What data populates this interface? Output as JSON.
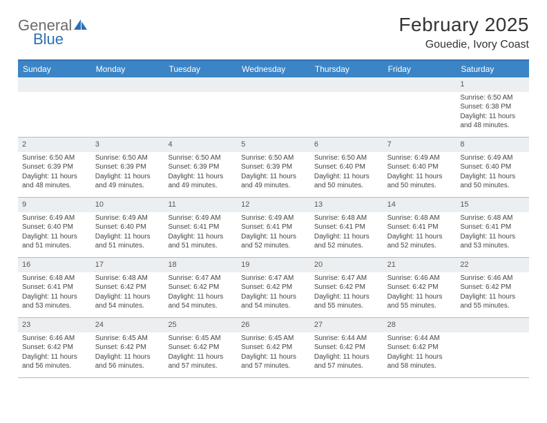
{
  "logo": {
    "word1": "General",
    "word2": "Blue"
  },
  "title": "February 2025",
  "location": "Gouedie, Ivory Coast",
  "colors": {
    "header_bg": "#3b85c6",
    "header_border_top": "#2e6fb4",
    "row_border": "#a9bcd0",
    "daynum_bg": "#eceff1",
    "text": "#333333"
  },
  "day_labels": [
    "Sunday",
    "Monday",
    "Tuesday",
    "Wednesday",
    "Thursday",
    "Friday",
    "Saturday"
  ],
  "weeks": [
    [
      {
        "n": "",
        "sr": "",
        "ss": "",
        "dl": ""
      },
      {
        "n": "",
        "sr": "",
        "ss": "",
        "dl": ""
      },
      {
        "n": "",
        "sr": "",
        "ss": "",
        "dl": ""
      },
      {
        "n": "",
        "sr": "",
        "ss": "",
        "dl": ""
      },
      {
        "n": "",
        "sr": "",
        "ss": "",
        "dl": ""
      },
      {
        "n": "",
        "sr": "",
        "ss": "",
        "dl": ""
      },
      {
        "n": "1",
        "sr": "Sunrise: 6:50 AM",
        "ss": "Sunset: 6:38 PM",
        "dl": "Daylight: 11 hours and 48 minutes."
      }
    ],
    [
      {
        "n": "2",
        "sr": "Sunrise: 6:50 AM",
        "ss": "Sunset: 6:39 PM",
        "dl": "Daylight: 11 hours and 48 minutes."
      },
      {
        "n": "3",
        "sr": "Sunrise: 6:50 AM",
        "ss": "Sunset: 6:39 PM",
        "dl": "Daylight: 11 hours and 49 minutes."
      },
      {
        "n": "4",
        "sr": "Sunrise: 6:50 AM",
        "ss": "Sunset: 6:39 PM",
        "dl": "Daylight: 11 hours and 49 minutes."
      },
      {
        "n": "5",
        "sr": "Sunrise: 6:50 AM",
        "ss": "Sunset: 6:39 PM",
        "dl": "Daylight: 11 hours and 49 minutes."
      },
      {
        "n": "6",
        "sr": "Sunrise: 6:50 AM",
        "ss": "Sunset: 6:40 PM",
        "dl": "Daylight: 11 hours and 50 minutes."
      },
      {
        "n": "7",
        "sr": "Sunrise: 6:49 AM",
        "ss": "Sunset: 6:40 PM",
        "dl": "Daylight: 11 hours and 50 minutes."
      },
      {
        "n": "8",
        "sr": "Sunrise: 6:49 AM",
        "ss": "Sunset: 6:40 PM",
        "dl": "Daylight: 11 hours and 50 minutes."
      }
    ],
    [
      {
        "n": "9",
        "sr": "Sunrise: 6:49 AM",
        "ss": "Sunset: 6:40 PM",
        "dl": "Daylight: 11 hours and 51 minutes."
      },
      {
        "n": "10",
        "sr": "Sunrise: 6:49 AM",
        "ss": "Sunset: 6:40 PM",
        "dl": "Daylight: 11 hours and 51 minutes."
      },
      {
        "n": "11",
        "sr": "Sunrise: 6:49 AM",
        "ss": "Sunset: 6:41 PM",
        "dl": "Daylight: 11 hours and 51 minutes."
      },
      {
        "n": "12",
        "sr": "Sunrise: 6:49 AM",
        "ss": "Sunset: 6:41 PM",
        "dl": "Daylight: 11 hours and 52 minutes."
      },
      {
        "n": "13",
        "sr": "Sunrise: 6:48 AM",
        "ss": "Sunset: 6:41 PM",
        "dl": "Daylight: 11 hours and 52 minutes."
      },
      {
        "n": "14",
        "sr": "Sunrise: 6:48 AM",
        "ss": "Sunset: 6:41 PM",
        "dl": "Daylight: 11 hours and 52 minutes."
      },
      {
        "n": "15",
        "sr": "Sunrise: 6:48 AM",
        "ss": "Sunset: 6:41 PM",
        "dl": "Daylight: 11 hours and 53 minutes."
      }
    ],
    [
      {
        "n": "16",
        "sr": "Sunrise: 6:48 AM",
        "ss": "Sunset: 6:41 PM",
        "dl": "Daylight: 11 hours and 53 minutes."
      },
      {
        "n": "17",
        "sr": "Sunrise: 6:48 AM",
        "ss": "Sunset: 6:42 PM",
        "dl": "Daylight: 11 hours and 54 minutes."
      },
      {
        "n": "18",
        "sr": "Sunrise: 6:47 AM",
        "ss": "Sunset: 6:42 PM",
        "dl": "Daylight: 11 hours and 54 minutes."
      },
      {
        "n": "19",
        "sr": "Sunrise: 6:47 AM",
        "ss": "Sunset: 6:42 PM",
        "dl": "Daylight: 11 hours and 54 minutes."
      },
      {
        "n": "20",
        "sr": "Sunrise: 6:47 AM",
        "ss": "Sunset: 6:42 PM",
        "dl": "Daylight: 11 hours and 55 minutes."
      },
      {
        "n": "21",
        "sr": "Sunrise: 6:46 AM",
        "ss": "Sunset: 6:42 PM",
        "dl": "Daylight: 11 hours and 55 minutes."
      },
      {
        "n": "22",
        "sr": "Sunrise: 6:46 AM",
        "ss": "Sunset: 6:42 PM",
        "dl": "Daylight: 11 hours and 55 minutes."
      }
    ],
    [
      {
        "n": "23",
        "sr": "Sunrise: 6:46 AM",
        "ss": "Sunset: 6:42 PM",
        "dl": "Daylight: 11 hours and 56 minutes."
      },
      {
        "n": "24",
        "sr": "Sunrise: 6:45 AM",
        "ss": "Sunset: 6:42 PM",
        "dl": "Daylight: 11 hours and 56 minutes."
      },
      {
        "n": "25",
        "sr": "Sunrise: 6:45 AM",
        "ss": "Sunset: 6:42 PM",
        "dl": "Daylight: 11 hours and 57 minutes."
      },
      {
        "n": "26",
        "sr": "Sunrise: 6:45 AM",
        "ss": "Sunset: 6:42 PM",
        "dl": "Daylight: 11 hours and 57 minutes."
      },
      {
        "n": "27",
        "sr": "Sunrise: 6:44 AM",
        "ss": "Sunset: 6:42 PM",
        "dl": "Daylight: 11 hours and 57 minutes."
      },
      {
        "n": "28",
        "sr": "Sunrise: 6:44 AM",
        "ss": "Sunset: 6:42 PM",
        "dl": "Daylight: 11 hours and 58 minutes."
      },
      {
        "n": "",
        "sr": "",
        "ss": "",
        "dl": ""
      }
    ]
  ]
}
